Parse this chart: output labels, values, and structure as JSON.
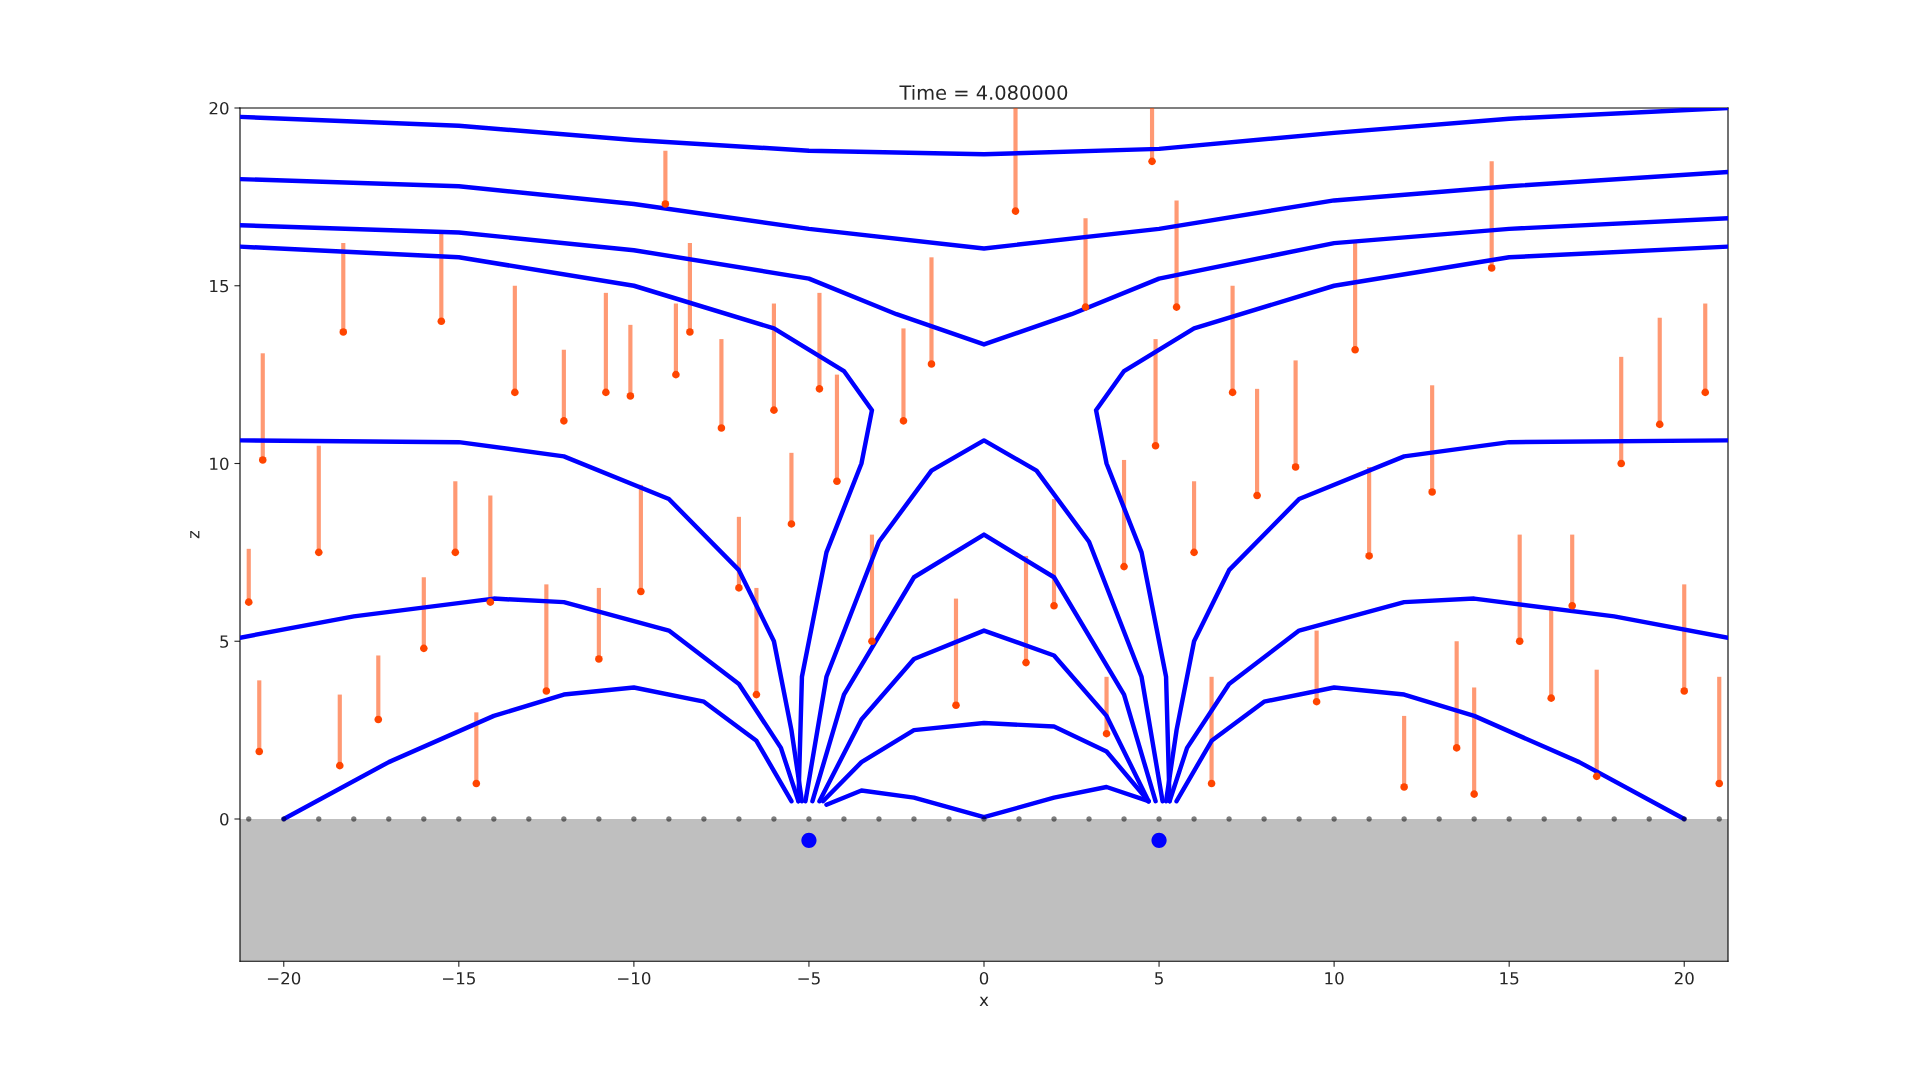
{
  "chart_data": {
    "type": "line",
    "title": "Time = 4.080000",
    "xlabel": "x",
    "ylabel": "z",
    "xlim": [
      -21.25,
      21.25
    ],
    "ylim": [
      -4,
      20
    ],
    "xticks": [
      {
        "value": -20,
        "label": "−20"
      },
      {
        "value": -15,
        "label": "−15"
      },
      {
        "value": -10,
        "label": "−10"
      },
      {
        "value": -5,
        "label": "−5"
      },
      0,
      5,
      10,
      15,
      20
    ],
    "yticks": [
      0,
      5,
      10,
      15,
      20
    ],
    "bands": [
      {
        "axis": "y",
        "from": -4,
        "to": 0,
        "color": "#bfbfbf"
      }
    ],
    "series": [
      {
        "type": "line",
        "color": "#0000ff",
        "x": [
          -21.25,
          -15,
          -10,
          -5,
          0,
          5,
          10,
          15,
          21.25
        ],
        "values": [
          19.75,
          19.5,
          19.1,
          18.8,
          18.7,
          18.85,
          19.3,
          19.7,
          20
        ]
      },
      {
        "type": "line",
        "color": "#0000ff",
        "x": [
          -21.25,
          -15,
          -10,
          -5,
          0,
          5,
          10,
          15,
          21.25
        ],
        "values": [
          18.0,
          17.8,
          17.3,
          16.6,
          16.05,
          16.6,
          17.4,
          17.8,
          18.2
        ]
      },
      {
        "type": "line",
        "color": "#0000ff",
        "x": [
          -21.25,
          -15,
          -10,
          -5,
          -2.5,
          0,
          2.5,
          5,
          10,
          15,
          21.25
        ],
        "values": [
          16.7,
          16.5,
          16.0,
          15.2,
          14.2,
          13.35,
          14.2,
          15.2,
          16.2,
          16.6,
          16.9
        ]
      },
      {
        "type": "line",
        "color": "#0000ff",
        "x": [
          -21.25,
          -15,
          -10,
          -6,
          -4,
          -3.2,
          -3.5,
          -4.5,
          -5.2,
          -5.3
        ],
        "values": [
          16.1,
          15.8,
          15.0,
          13.8,
          12.6,
          11.5,
          10,
          7.5,
          4,
          0.5
        ]
      },
      {
        "type": "line",
        "color": "#0000ff",
        "x": [
          21.25,
          15,
          10,
          6,
          4,
          3.2,
          3.5,
          4.5,
          5.2,
          5.3
        ],
        "values": [
          16.1,
          15.8,
          15.0,
          13.8,
          12.6,
          11.5,
          10,
          7.5,
          4,
          0.5
        ]
      },
      {
        "type": "line",
        "color": "#0000ff",
        "x": [
          -21.25,
          -15,
          -12,
          -9,
          -7,
          -6,
          -5.5,
          -5.2
        ],
        "values": [
          10.65,
          10.6,
          10.2,
          9,
          7,
          5,
          2.5,
          0.5
        ]
      },
      {
        "type": "line",
        "color": "#0000ff",
        "x": [
          21.25,
          15,
          12,
          9,
          7,
          6,
          5.5,
          5.2
        ],
        "values": [
          10.65,
          10.6,
          10.2,
          9,
          7,
          5,
          2.5,
          0.5
        ]
      },
      {
        "type": "line",
        "color": "#0000ff",
        "x": [
          -21.25,
          -18,
          -14,
          -12,
          -9,
          -7,
          -5.8,
          -5.3
        ],
        "values": [
          5.1,
          5.7,
          6.2,
          6.1,
          5.3,
          3.8,
          2,
          0.5
        ]
      },
      {
        "type": "line",
        "color": "#0000ff",
        "x": [
          21.25,
          18,
          14,
          12,
          9,
          7,
          5.8,
          5.3
        ],
        "values": [
          5.1,
          5.7,
          6.2,
          6.1,
          5.3,
          3.8,
          2,
          0.5
        ]
      },
      {
        "type": "line",
        "color": "#0000ff",
        "x": [
          -20,
          -17,
          -14,
          -12,
          -10,
          -8,
          -6.5,
          -5.5
        ],
        "values": [
          0,
          1.6,
          2.9,
          3.5,
          3.7,
          3.3,
          2.2,
          0.5
        ]
      },
      {
        "type": "line",
        "color": "#0000ff",
        "x": [
          20,
          17,
          14,
          12,
          10,
          8,
          6.5,
          5.5
        ],
        "values": [
          0,
          1.6,
          2.9,
          3.5,
          3.7,
          3.3,
          2.2,
          0.5
        ]
      },
      {
        "type": "line",
        "color": "#0000ff",
        "x": [
          -5.1,
          -4.5,
          -3,
          -1.5,
          0,
          1.5,
          3,
          4.5,
          5.1
        ],
        "values": [
          0.5,
          4,
          7.8,
          9.8,
          10.65,
          9.8,
          7.8,
          4,
          0.5
        ]
      },
      {
        "type": "line",
        "color": "#0000ff",
        "x": [
          -4.9,
          -4,
          -2,
          0,
          2,
          4,
          4.9
        ],
        "values": [
          0.5,
          3.5,
          6.8,
          8.0,
          6.8,
          3.5,
          0.5
        ]
      },
      {
        "type": "line",
        "color": "#0000ff",
        "x": [
          -4.7,
          -3.5,
          -2,
          0,
          2,
          3.5,
          4.7
        ],
        "values": [
          0.5,
          2.8,
          4.5,
          5.3,
          4.6,
          2.9,
          0.5
        ]
      },
      {
        "type": "line",
        "color": "#0000ff",
        "x": [
          -4.6,
          -3.5,
          -2,
          0,
          2,
          3.5,
          4.7
        ],
        "values": [
          0.5,
          1.6,
          2.5,
          2.7,
          2.6,
          1.9,
          0.5
        ]
      },
      {
        "type": "line",
        "color": "#0000ff",
        "x": [
          -4.5,
          -3.5,
          -2,
          0,
          2,
          3.5,
          4.7
        ],
        "values": [
          0.4,
          0.8,
          0.6,
          0.05,
          0.6,
          0.9,
          0.5
        ]
      },
      {
        "type": "scatter",
        "color": "#000000",
        "x": [
          -21,
          -20,
          -19,
          -18,
          -17,
          -16,
          -15,
          -14,
          -13,
          -12,
          -11,
          -10,
          -9,
          -8,
          -7,
          -6,
          -5,
          -4,
          -3,
          -2,
          -1,
          0,
          1,
          2,
          3,
          4,
          5,
          6,
          7,
          8,
          9,
          10,
          11,
          12,
          13,
          14,
          15,
          16,
          17,
          18,
          19,
          20,
          21
        ],
        "values": [
          0,
          0,
          0,
          0,
          0,
          0,
          0,
          0,
          0,
          0,
          0,
          0,
          0,
          0,
          0,
          0,
          0,
          0,
          0,
          0,
          0,
          0,
          0,
          0,
          0,
          0,
          0,
          0,
          0,
          0,
          0,
          0,
          0,
          0,
          0,
          0,
          0,
          0,
          0,
          0,
          0,
          0,
          0
        ]
      },
      {
        "type": "scatter",
        "color": "#ff4500",
        "x": [
          -21,
          -20.7,
          -20.6,
          -19,
          -18.4,
          -18.3,
          -17.3,
          -16,
          -15.5,
          -15.1,
          -14.5,
          -14.1,
          -13.4,
          -12.5,
          -12,
          -11,
          -10.8,
          -10.1,
          -9.8,
          -9.1,
          -8.8,
          -8.4,
          -7.5,
          -7,
          -6.5,
          -6,
          -5.5,
          -4.7,
          -4.2,
          -3.2,
          -2.3,
          -1.5,
          -0.8,
          0.9,
          1.2,
          2,
          2.9,
          3.5,
          4,
          4.8,
          4.9,
          5.5,
          6,
          6.5,
          7.1,
          7.8,
          8.9,
          9.5,
          10.6,
          11,
          12,
          12.8,
          13.5,
          14,
          14.5,
          15.3,
          16.2,
          16.8,
          17.5,
          18.2,
          19.3,
          20,
          20.6,
          21
        ],
        "values": [
          6.1,
          1.9,
          10.1,
          7.5,
          1.5,
          13.7,
          2.8,
          4.8,
          14,
          7.5,
          1,
          6.1,
          12,
          3.6,
          11.2,
          4.5,
          12,
          11.9,
          6.4,
          17.3,
          12.5,
          13.7,
          11,
          6.5,
          3.5,
          11.5,
          8.3,
          12.1,
          9.5,
          5,
          11.2,
          12.8,
          3.2,
          17.1,
          4.4,
          6,
          14.4,
          2.4,
          7.1,
          18.5,
          10.5,
          14.4,
          7.5,
          1,
          12,
          9.1,
          9.9,
          3.3,
          13.2,
          7.4,
          0.9,
          9.2,
          2,
          0.7,
          15.5,
          5,
          3.4,
          6,
          1.2,
          10,
          11.1,
          3.6,
          12,
          1
        ],
        "errors": [
          [
            6.1,
            7.6
          ],
          [
            1.9,
            3.9
          ],
          [
            10.1,
            13.1
          ],
          [
            7.5,
            10.5
          ],
          [
            1.5,
            3.5
          ],
          [
            13.7,
            16.2
          ],
          [
            2.8,
            4.6
          ],
          [
            4.8,
            6.8
          ],
          [
            14,
            16.5
          ],
          [
            7.5,
            9.5
          ],
          [
            1,
            3
          ],
          [
            6.1,
            9.1
          ],
          [
            12,
            15
          ],
          [
            3.6,
            6.6
          ],
          [
            11.2,
            13.2
          ],
          [
            4.5,
            6.5
          ],
          [
            12,
            14.8
          ],
          [
            11.9,
            13.9
          ],
          [
            6.4,
            9.4
          ],
          [
            17.3,
            18.8
          ],
          [
            12.5,
            14.5
          ],
          [
            13.7,
            16.2
          ],
          [
            11,
            13.5
          ],
          [
            6.5,
            8.5
          ],
          [
            3.5,
            6.5
          ],
          [
            11.5,
            14.5
          ],
          [
            8.3,
            10.3
          ],
          [
            12.1,
            14.8
          ],
          [
            9.5,
            12.5
          ],
          [
            5,
            8
          ],
          [
            11.2,
            13.8
          ],
          [
            12.8,
            15.8
          ],
          [
            3.2,
            6.2
          ],
          [
            17.1,
            20
          ],
          [
            4.4,
            7.4
          ],
          [
            6,
            9
          ],
          [
            14.4,
            16.9
          ],
          [
            2.4,
            4.0
          ],
          [
            7.1,
            10.1
          ],
          [
            18.5,
            20
          ],
          [
            10.5,
            13.5
          ],
          [
            14.4,
            17.4
          ],
          [
            7.5,
            9.5
          ],
          [
            1,
            4
          ],
          [
            12,
            15
          ],
          [
            9.1,
            12.1
          ],
          [
            9.9,
            12.9
          ],
          [
            3.3,
            5.3
          ],
          [
            13.2,
            16.2
          ],
          [
            7.4,
            9.9
          ],
          [
            0.9,
            2.9
          ],
          [
            9.2,
            12.2
          ],
          [
            2,
            5
          ],
          [
            0.7,
            3.7
          ],
          [
            15.5,
            18.5
          ],
          [
            5,
            8
          ],
          [
            3.4,
            5.9
          ],
          [
            6,
            8
          ],
          [
            1.2,
            4.2
          ],
          [
            10,
            13
          ],
          [
            11.1,
            14.1
          ],
          [
            3.6,
            6.6
          ],
          [
            12,
            14.5
          ],
          [
            1,
            4
          ]
        ]
      },
      {
        "type": "scatter",
        "color": "#0000ff",
        "x": [
          -5,
          5
        ],
        "values": [
          -0.6,
          -0.6
        ]
      }
    ]
  }
}
